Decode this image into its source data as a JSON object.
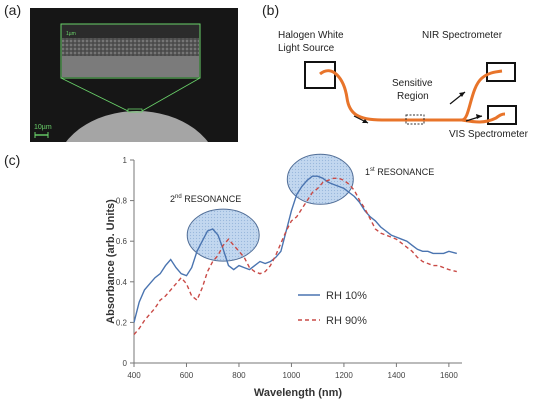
{
  "panels": {
    "a_label": "(a)",
    "b_label": "(b)",
    "c_label": "(c)"
  },
  "panel_a": {
    "scale_bar_text": "10µm",
    "inset_scale_text": "1µm"
  },
  "panel_b": {
    "source_label_line1": "Halogen White",
    "source_label_line2": "Light Source",
    "nir_label": "NIR Spectrometer",
    "sensitive_label_line1": "Sensitive",
    "sensitive_label_line2": "Region",
    "vis_label": "VIS Spectrometer",
    "fiber_color": "#e8742a"
  },
  "chart_data": {
    "type": "line",
    "xlabel": "Wavelength (nm)",
    "ylabel": "Absorbance (arb. Units)",
    "xlim": [
      400,
      1650
    ],
    "ylim": [
      0,
      1
    ],
    "xticks": [
      "400",
      "600",
      "800",
      "1000",
      "1200",
      "1400",
      "1600"
    ],
    "yticks": [
      "0",
      "0.2",
      "0.4",
      "0.6",
      "0.8",
      "1"
    ],
    "xtick_values": [
      400,
      600,
      800,
      1000,
      1200,
      1400,
      1600
    ],
    "ytick_values": [
      0,
      0.2,
      0.4,
      0.6,
      0.8,
      1.0
    ],
    "legend_position": "bottom-right",
    "annotations": {
      "first_resonance": "1st RESONANCE",
      "first_main": "1",
      "first_sup": "st",
      "first_rest": " RESONANCE",
      "second_resonance": "2nd RESONANCE",
      "second_main": "2",
      "second_sup": "nd",
      "second_rest": " RESONANCE"
    },
    "series": [
      {
        "name": "RH 10%",
        "color": "#4a74b0",
        "style": "solid",
        "x": [
          400,
          420,
          440,
          460,
          480,
          500,
          520,
          540,
          560,
          580,
          600,
          620,
          640,
          660,
          680,
          700,
          720,
          740,
          760,
          780,
          800,
          820,
          840,
          860,
          880,
          900,
          920,
          940,
          960,
          980,
          1000,
          1020,
          1040,
          1060,
          1080,
          1100,
          1120,
          1140,
          1160,
          1180,
          1200,
          1220,
          1240,
          1260,
          1280,
          1300,
          1320,
          1340,
          1360,
          1380,
          1400,
          1420,
          1440,
          1460,
          1480,
          1500,
          1520,
          1540,
          1560,
          1580,
          1600,
          1630
        ],
        "y": [
          0.2,
          0.3,
          0.36,
          0.39,
          0.42,
          0.44,
          0.48,
          0.51,
          0.47,
          0.44,
          0.43,
          0.47,
          0.55,
          0.6,
          0.65,
          0.66,
          0.63,
          0.56,
          0.48,
          0.46,
          0.48,
          0.47,
          0.46,
          0.48,
          0.5,
          0.49,
          0.5,
          0.52,
          0.55,
          0.65,
          0.75,
          0.83,
          0.87,
          0.9,
          0.92,
          0.92,
          0.91,
          0.89,
          0.88,
          0.87,
          0.86,
          0.84,
          0.82,
          0.79,
          0.75,
          0.72,
          0.7,
          0.67,
          0.65,
          0.63,
          0.62,
          0.61,
          0.6,
          0.58,
          0.56,
          0.55,
          0.55,
          0.54,
          0.54,
          0.54,
          0.55,
          0.54
        ]
      },
      {
        "name": "RH 90%",
        "color": "#c94a46",
        "style": "dashed",
        "x": [
          400,
          420,
          440,
          460,
          480,
          500,
          520,
          540,
          560,
          580,
          600,
          620,
          640,
          660,
          680,
          700,
          720,
          740,
          760,
          780,
          800,
          820,
          840,
          860,
          880,
          900,
          920,
          940,
          960,
          980,
          1000,
          1020,
          1040,
          1060,
          1080,
          1100,
          1120,
          1140,
          1160,
          1180,
          1200,
          1220,
          1240,
          1260,
          1280,
          1300,
          1320,
          1340,
          1360,
          1380,
          1400,
          1420,
          1440,
          1460,
          1480,
          1500,
          1520,
          1540,
          1560,
          1580,
          1600,
          1630
        ],
        "y": [
          0.14,
          0.17,
          0.21,
          0.24,
          0.27,
          0.31,
          0.33,
          0.36,
          0.39,
          0.42,
          0.39,
          0.33,
          0.31,
          0.37,
          0.45,
          0.5,
          0.53,
          0.58,
          0.61,
          0.58,
          0.55,
          0.52,
          0.47,
          0.45,
          0.44,
          0.45,
          0.48,
          0.53,
          0.59,
          0.65,
          0.7,
          0.72,
          0.76,
          0.8,
          0.84,
          0.86,
          0.89,
          0.9,
          0.91,
          0.91,
          0.9,
          0.88,
          0.85,
          0.8,
          0.76,
          0.71,
          0.66,
          0.64,
          0.63,
          0.62,
          0.61,
          0.59,
          0.57,
          0.55,
          0.52,
          0.5,
          0.49,
          0.48,
          0.48,
          0.47,
          0.46,
          0.45
        ]
      }
    ]
  }
}
